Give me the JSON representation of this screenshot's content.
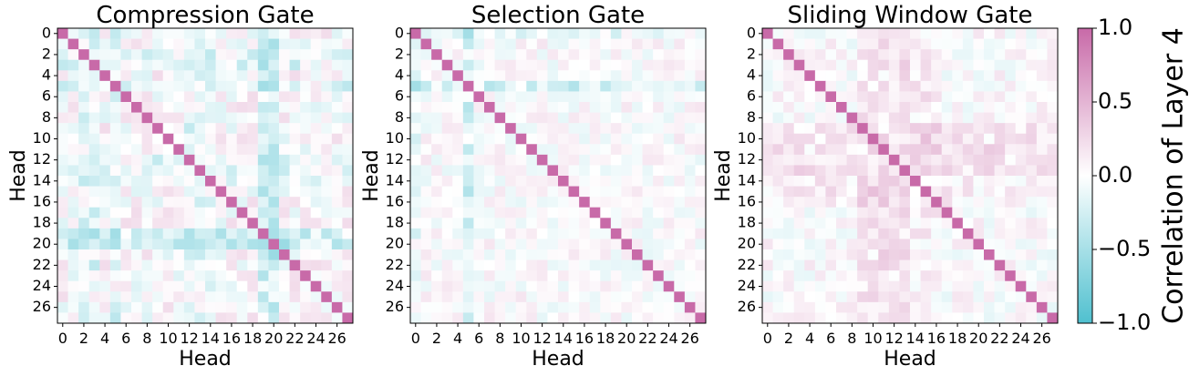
{
  "chart_data": {
    "type": "heatmap",
    "panels": [
      {
        "title": "Compression Gate",
        "xlabel": "Head",
        "ylabel": "Head",
        "seed": 11,
        "spread": 0.22,
        "bands": [
          {
            "idx": [
              19,
              20
            ],
            "val": -0.35
          },
          {
            "idx": [
              2,
              3,
              5
            ],
            "val": -0.18
          },
          {
            "idx": [
              12,
              13,
              14
            ],
            "val": -0.15
          }
        ]
      },
      {
        "title": "Selection Gate",
        "xlabel": "Head",
        "ylabel": "Head",
        "seed": 23,
        "spread": 0.16,
        "bands": [
          {
            "idx": [
              5
            ],
            "val": -0.3
          },
          {
            "idx": [
              0
            ],
            "val": -0.15
          }
        ]
      },
      {
        "title": "Sliding Window Gate",
        "xlabel": "Head",
        "ylabel": "Head",
        "seed": 37,
        "spread": 0.16,
        "bands": [
          {
            "idx": [
              9,
              10,
              11,
              12,
              13
            ],
            "val": 0.18
          },
          {
            "idx": [
              14,
              15,
              16
            ],
            "val": 0.1
          }
        ]
      }
    ],
    "n": 28,
    "ticks": [
      "0",
      "2",
      "4",
      "6",
      "8",
      "10",
      "12",
      "14",
      "16",
      "18",
      "20",
      "22",
      "24",
      "26"
    ],
    "diagonal_value": 1.0,
    "vmin": -1.0,
    "vmax": 1.0,
    "colorbar": {
      "label": "Correlation of Layer 4",
      "ticks": [
        "1.0",
        "0.5",
        "0.0",
        "−0.5",
        "−1.0"
      ],
      "low_color": "#4fc0cf",
      "mid_color": "#ffffff",
      "high_color": "#c86aa8"
    }
  }
}
